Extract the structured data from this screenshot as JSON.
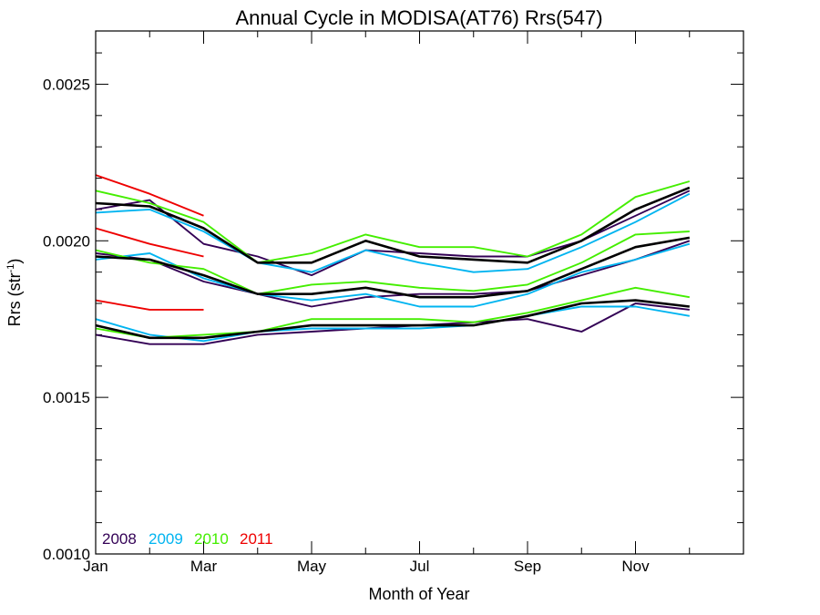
{
  "chart_data": {
    "type": "line",
    "title": "Annual Cycle in MODISA(AT76) Rrs(547)",
    "xlabel": "Month of Year",
    "ylabel_main": "Rrs (str",
    "ylabel_sup": "-1",
    "ylabel_close": ")",
    "xlim": [
      1,
      13
    ],
    "ylim": [
      0.001,
      0.00267
    ],
    "x_ticks": [
      {
        "value": 1,
        "label": "Jan"
      },
      {
        "value": 3,
        "label": "Mar"
      },
      {
        "value": 5,
        "label": "May"
      },
      {
        "value": 7,
        "label": "Jul"
      },
      {
        "value": 9,
        "label": "Sep"
      },
      {
        "value": 11,
        "label": "Nov"
      }
    ],
    "y_ticks": [
      {
        "value": 0.001,
        "label": "0.0010"
      },
      {
        "value": 0.0015,
        "label": "0.0015"
      },
      {
        "value": 0.002,
        "label": "0.0020"
      },
      {
        "value": 0.0025,
        "label": "0.0025"
      }
    ],
    "x_minor_ticks": [
      2,
      4,
      6,
      8,
      10,
      12
    ],
    "y_minor_ticks": [
      0.0011,
      0.0012,
      0.0013,
      0.0014,
      0.0016,
      0.0017,
      0.0018,
      0.0019,
      0.0021,
      0.0022,
      0.0023,
      0.0024,
      0.0026
    ],
    "legend": [
      {
        "label": "2008",
        "color": "#330055"
      },
      {
        "label": "2009",
        "color": "#00b4f0"
      },
      {
        "label": "2010",
        "color": "#44ee00"
      },
      {
        "label": "2011",
        "color": "#ee0000"
      }
    ],
    "legend_position": "bottom-left",
    "series": [
      {
        "year": "2008",
        "color": "#330055",
        "x": [
          1,
          2,
          3,
          4,
          5,
          6,
          7,
          8,
          9,
          10,
          11,
          12
        ],
        "y": [
          0.0021,
          0.00213,
          0.00199,
          0.00195,
          0.00189,
          0.00197,
          0.00196,
          0.00195,
          0.00195,
          0.002,
          0.00208,
          0.00216
        ]
      },
      {
        "year": "2008",
        "color": "#330055",
        "x": [
          1,
          2,
          3,
          4,
          5,
          6,
          7,
          8,
          9,
          10,
          11,
          12
        ],
        "y": [
          0.00196,
          0.00194,
          0.00187,
          0.00183,
          0.00179,
          0.00182,
          0.00183,
          0.00183,
          0.00184,
          0.00189,
          0.00194,
          0.002
        ]
      },
      {
        "year": "2008",
        "color": "#330055",
        "x": [
          1,
          2,
          3,
          4,
          5,
          6,
          7,
          8,
          9,
          10,
          11,
          12
        ],
        "y": [
          0.0017,
          0.00167,
          0.00167,
          0.0017,
          0.00171,
          0.00172,
          0.00173,
          0.00174,
          0.00175,
          0.00171,
          0.0018,
          0.00178
        ]
      },
      {
        "year": "2009",
        "color": "#00b4f0",
        "x": [
          1,
          2,
          3,
          4,
          5,
          6,
          7,
          8,
          9,
          10,
          11,
          12
        ],
        "y": [
          0.00209,
          0.0021,
          0.00203,
          0.00193,
          0.0019,
          0.00197,
          0.00193,
          0.0019,
          0.00191,
          0.00198,
          0.00206,
          0.00215
        ]
      },
      {
        "year": "2009",
        "color": "#00b4f0",
        "x": [
          1,
          2,
          3,
          4,
          5,
          6,
          7,
          8,
          9,
          10,
          11,
          12
        ],
        "y": [
          0.00194,
          0.00196,
          0.00188,
          0.00183,
          0.00181,
          0.00183,
          0.00179,
          0.00179,
          0.00183,
          0.0019,
          0.00194,
          0.00199
        ]
      },
      {
        "year": "2009",
        "color": "#00b4f0",
        "x": [
          1,
          2,
          3,
          4,
          5,
          6,
          7,
          8,
          9,
          10,
          11,
          12
        ],
        "y": [
          0.00175,
          0.0017,
          0.00168,
          0.00171,
          0.00172,
          0.00172,
          0.00172,
          0.00173,
          0.00176,
          0.00179,
          0.00179,
          0.00176
        ]
      },
      {
        "year": "2010",
        "color": "#44ee00",
        "x": [
          1,
          2,
          3,
          4,
          5,
          6,
          7,
          8,
          9,
          10,
          11,
          12
        ],
        "y": [
          0.00216,
          0.00212,
          0.00206,
          0.00193,
          0.00196,
          0.00202,
          0.00198,
          0.00198,
          0.00195,
          0.00202,
          0.00214,
          0.00219
        ]
      },
      {
        "year": "2010",
        "color": "#44ee00",
        "x": [
          1,
          2,
          3,
          4,
          5,
          6,
          7,
          8,
          9,
          10,
          11,
          12
        ],
        "y": [
          0.00197,
          0.00193,
          0.00191,
          0.00183,
          0.00186,
          0.00187,
          0.00185,
          0.00184,
          0.00186,
          0.00193,
          0.00202,
          0.00203
        ]
      },
      {
        "year": "2010",
        "color": "#44ee00",
        "x": [
          1,
          2,
          3,
          4,
          5,
          6,
          7,
          8,
          9,
          10,
          11,
          12
        ],
        "y": [
          0.00172,
          0.00169,
          0.0017,
          0.00171,
          0.00175,
          0.00175,
          0.00175,
          0.00174,
          0.00177,
          0.00181,
          0.00185,
          0.00182
        ]
      },
      {
        "year": "2011",
        "color": "#ee0000",
        "x": [
          1,
          2,
          3
        ],
        "y": [
          0.00221,
          0.00215,
          0.00208
        ]
      },
      {
        "year": "2011",
        "color": "#ee0000",
        "x": [
          1,
          2,
          3
        ],
        "y": [
          0.00204,
          0.00199,
          0.00195
        ]
      },
      {
        "year": "2011",
        "color": "#ee0000",
        "x": [
          1,
          2,
          3
        ],
        "y": [
          0.00181,
          0.00178,
          0.00178
        ]
      },
      {
        "year": "",
        "color": "#000000",
        "x": [
          1,
          2,
          3,
          4,
          5,
          6,
          7,
          8,
          9,
          10,
          11,
          12
        ],
        "y": [
          0.00212,
          0.00211,
          0.00204,
          0.00193,
          0.00193,
          0.002,
          0.00195,
          0.00194,
          0.00193,
          0.002,
          0.0021,
          0.00217
        ]
      },
      {
        "year": "",
        "color": "#000000",
        "x": [
          1,
          2,
          3,
          4,
          5,
          6,
          7,
          8,
          9,
          10,
          11,
          12
        ],
        "y": [
          0.00195,
          0.00194,
          0.00189,
          0.00183,
          0.00183,
          0.00185,
          0.00182,
          0.00182,
          0.00184,
          0.00191,
          0.00198,
          0.00201
        ]
      },
      {
        "year": "",
        "color": "#000000",
        "x": [
          1,
          2,
          3,
          4,
          5,
          6,
          7,
          8,
          9,
          10,
          11,
          12
        ],
        "y": [
          0.00173,
          0.00169,
          0.00169,
          0.00171,
          0.00173,
          0.00173,
          0.00173,
          0.00173,
          0.00176,
          0.0018,
          0.00181,
          0.00179
        ]
      }
    ]
  }
}
